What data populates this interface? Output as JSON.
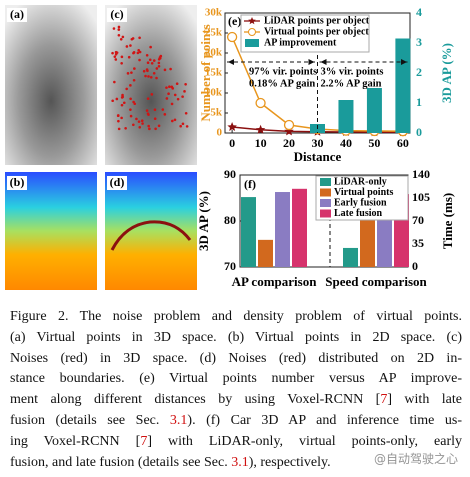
{
  "panels": [
    "(a)",
    "(c)",
    "(b)",
    "(d)"
  ],
  "chart_data": [
    {
      "type": "line",
      "label": "(e)",
      "xlabel": "Distance",
      "ylabel": "Number of points",
      "y2label": "3D AP (%)",
      "ylabel_color": "#e8961e",
      "y2label_color": "#1a9b9b",
      "x": [
        0,
        10,
        20,
        30,
        40,
        50,
        60
      ],
      "xlim": [
        -2.5,
        62.5
      ],
      "xticks": [
        0,
        10,
        20,
        30,
        40,
        50,
        60
      ],
      "ylim": [
        0,
        30000
      ],
      "yticks": [
        0,
        {
          "value": 5000,
          "label": "5k"
        },
        {
          "value": 10000,
          "label": "10k"
        },
        {
          "value": 15000,
          "label": "15k"
        },
        {
          "value": 20000,
          "label": "20k"
        },
        {
          "value": 25000,
          "label": "25k"
        },
        {
          "value": 30000,
          "label": "30k"
        }
      ],
      "y2lim": [
        0,
        4
      ],
      "y2ticks": [
        0,
        1,
        2,
        3,
        4
      ],
      "series": [
        {
          "name": "LiDAR points per object",
          "type": "line",
          "marker": "star",
          "color": "#8b1010",
          "values": [
            1500,
            800,
            400,
            300,
            250,
            200,
            200
          ]
        },
        {
          "name": "Virtual points per object",
          "type": "line",
          "marker": "circle",
          "color": "#e8961e",
          "values": [
            24000,
            7500,
            2000,
            1000,
            600,
            500,
            450
          ]
        },
        {
          "name": "AP improvement",
          "type": "bar",
          "axis": "y2",
          "color": "#1a9b9b",
          "values": [
            null,
            null,
            null,
            0.3,
            1.1,
            1.5,
            3.15
          ]
        }
      ],
      "annotations": [
        "97% vir. points",
        "0.18% AP gain",
        "3% vir. points",
        "2.2% AP gain"
      ]
    },
    {
      "type": "bar",
      "label": "(f)",
      "ylabel": "3D AP (%)",
      "y2label": "Time (ms)",
      "categories": [
        "AP comparison",
        "Speed comparison"
      ],
      "category_axes": [
        "y",
        "y2"
      ],
      "ylim": [
        70,
        90
      ],
      "yticks": [
        70,
        80,
        90
      ],
      "y2lim": [
        0,
        140
      ],
      "y2ticks": [
        0,
        35,
        70,
        105,
        140
      ],
      "series": [
        {
          "name": "LiDAR-only",
          "color": "#239a8a",
          "values": [
            85.2,
            29
          ]
        },
        {
          "name": "Virtual points",
          "color": "#d2691e",
          "values": [
            75.9,
            75
          ]
        },
        {
          "name": "Early fusion",
          "color": "#8a7cc2",
          "values": [
            86.3,
            76
          ]
        },
        {
          "name": "Late fusion",
          "color": "#d6336c",
          "values": [
            87,
            111
          ]
        }
      ]
    }
  ],
  "caption": [
    [
      {
        "text": "Figure 2. The noise problem and density problem of virtual points."
      }
    ],
    [
      {
        "text": "(a) Virtual points in 3D space. (b) Virtual points in 2D space. (c)"
      }
    ],
    [
      {
        "text": "Noises (red) in 3D space. (d) Noises (red) distributed on 2D in-"
      }
    ],
    [
      {
        "text": "stance boundaries. (e) Virtual points number versus AP improve-"
      }
    ],
    [
      {
        "text": "ment along different distances by using Voxel-RCNN ["
      },
      {
        "text": "7",
        "ref": true
      },
      {
        "text": "] with late"
      }
    ],
    [
      {
        "text": "fusion (details see Sec. "
      },
      {
        "text": "3.1",
        "ref": true
      },
      {
        "text": "). (f) Car 3D AP and inference time us-"
      }
    ],
    [
      {
        "text": "ing Voxel-RCNN ["
      },
      {
        "text": "7",
        "ref": true
      },
      {
        "text": "] with LiDAR-only, virtual points-only, early"
      }
    ],
    [
      {
        "text": "fusion, and late fusion (details see Sec. "
      },
      {
        "text": "3.1",
        "ref": true
      },
      {
        "text": "), respectively."
      }
    ]
  ],
  "watermark": "@自动驾驶之心"
}
